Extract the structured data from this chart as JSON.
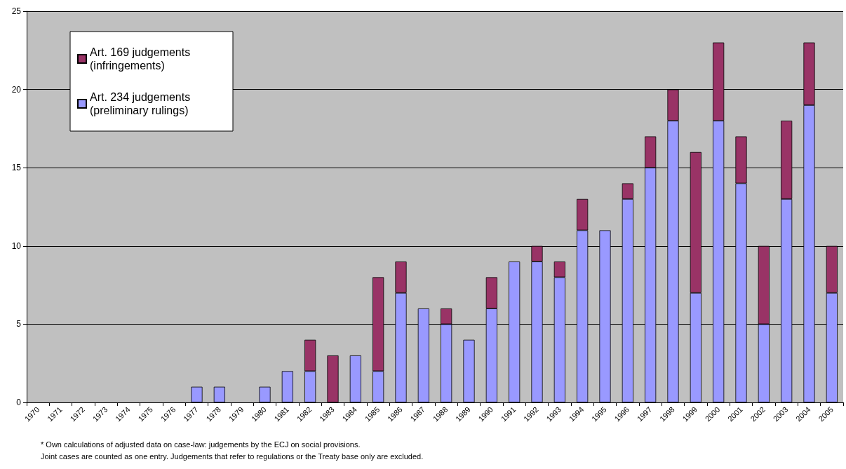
{
  "chart_data": {
    "type": "bar",
    "stacked": true,
    "categories": [
      "1970",
      "1971",
      "1972",
      "1973",
      "1974",
      "1975",
      "1976",
      "1977",
      "1978",
      "1979",
      "1980",
      "1981",
      "1982",
      "1983",
      "1984",
      "1985",
      "1986",
      "1987",
      "1988",
      "1989",
      "1990",
      "1991",
      "1992",
      "1993",
      "1994",
      "1995",
      "1996",
      "1997",
      "1998",
      "1999",
      "2000",
      "2001",
      "2002",
      "2003",
      "2004",
      "2005"
    ],
    "series": [
      {
        "name": "Art. 234 judgements (preliminary rulings)",
        "color": "#9999ff",
        "values": [
          0,
          0,
          0,
          0,
          0,
          0,
          0,
          1,
          1,
          0,
          1,
          2,
          2,
          0,
          3,
          2,
          7,
          6,
          5,
          4,
          6,
          9,
          9,
          8,
          11,
          11,
          13,
          15,
          18,
          7,
          18,
          14,
          5,
          13,
          19,
          7
        ]
      },
      {
        "name": "Art. 169 judgements (infringements)",
        "color": "#993366",
        "values": [
          0,
          0,
          0,
          0,
          0,
          0,
          0,
          0,
          0,
          0,
          0,
          0,
          2,
          3,
          0,
          6,
          2,
          0,
          1,
          0,
          2,
          0,
          1,
          1,
          2,
          0,
          1,
          2,
          2,
          9,
          5,
          3,
          5,
          5,
          4,
          3
        ]
      }
    ],
    "ylim": [
      0,
      25
    ],
    "yticks": [
      0,
      5,
      10,
      15,
      20,
      25
    ],
    "grid": "y",
    "legend": "top left",
    "annotations": [
      "* Own calculations of adjusted data on case-law: judgements by the ECJ on social provisions.",
      "Joint cases are counted as one entry. Judgements that refer to regulations or the Treaty base only are excluded."
    ]
  }
}
